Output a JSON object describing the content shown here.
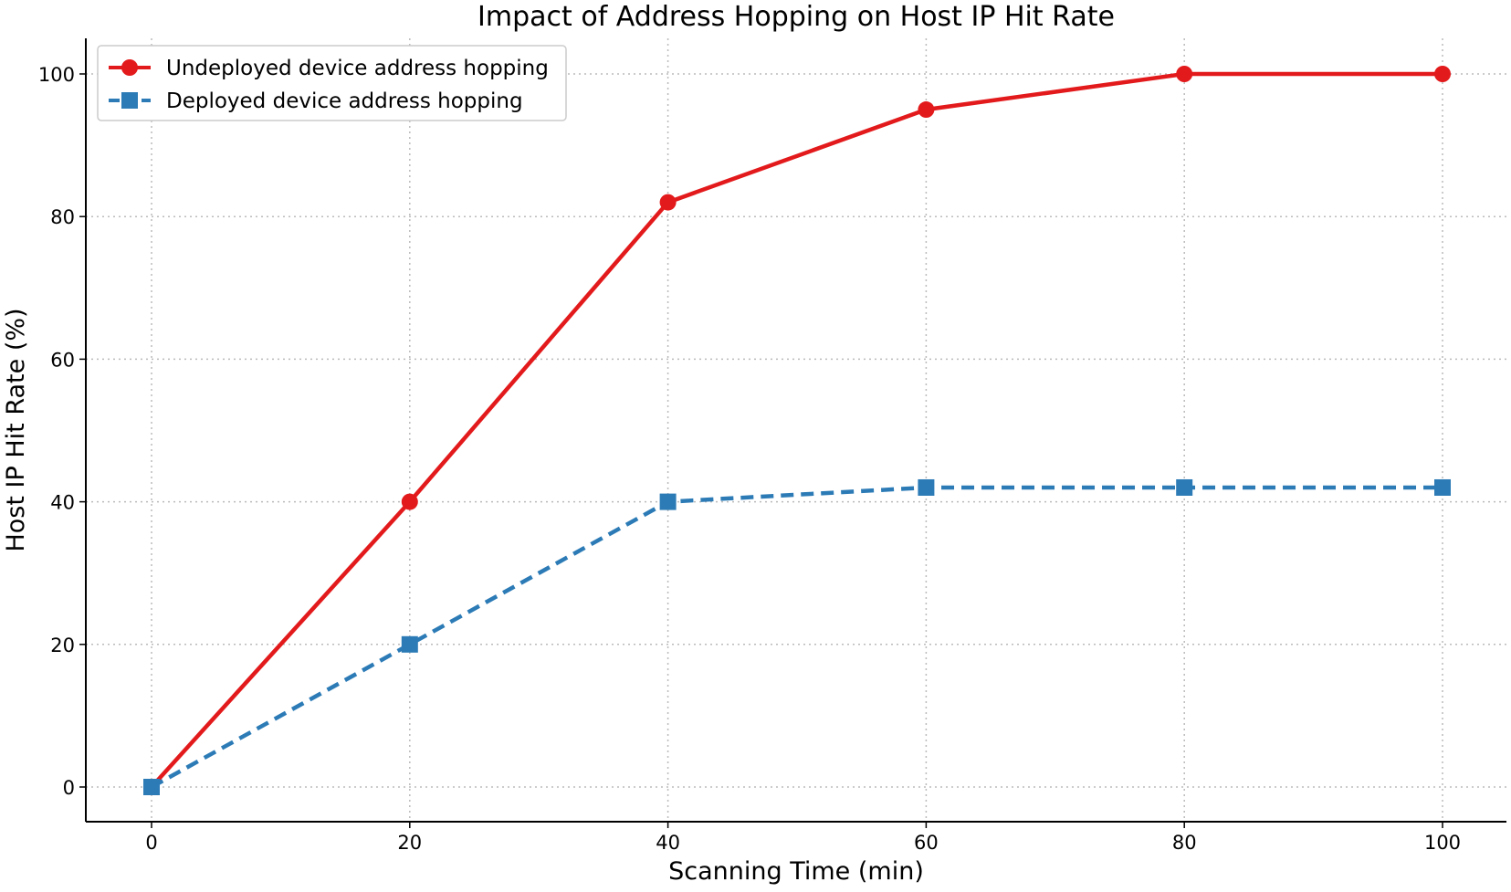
{
  "chart_data": {
    "type": "line",
    "title": "Impact of Address Hopping on Host IP Hit Rate",
    "xlabel": "Scanning Time (min)",
    "ylabel": "Host IP Hit Rate (%)",
    "x": [
      0,
      20,
      40,
      60,
      80,
      100
    ],
    "xlim": [
      -5,
      105
    ],
    "ylim": [
      -5,
      105
    ],
    "xticks": [
      "0",
      "20",
      "40",
      "60",
      "80",
      "100"
    ],
    "yticks": [
      "0",
      "20",
      "40",
      "60",
      "80",
      "100"
    ],
    "grid": true,
    "legend_position": "top-left",
    "series": [
      {
        "name": "Undeployed device address hopping",
        "values": [
          0,
          40,
          82,
          95,
          100,
          100
        ],
        "color": "#e31a1c",
        "marker": "circle",
        "linestyle": "solid"
      },
      {
        "name": "Deployed device address hopping",
        "values": [
          0,
          20,
          40,
          42,
          42,
          42
        ],
        "color": "#2c7bb6",
        "marker": "square",
        "linestyle": "dashed"
      }
    ]
  }
}
